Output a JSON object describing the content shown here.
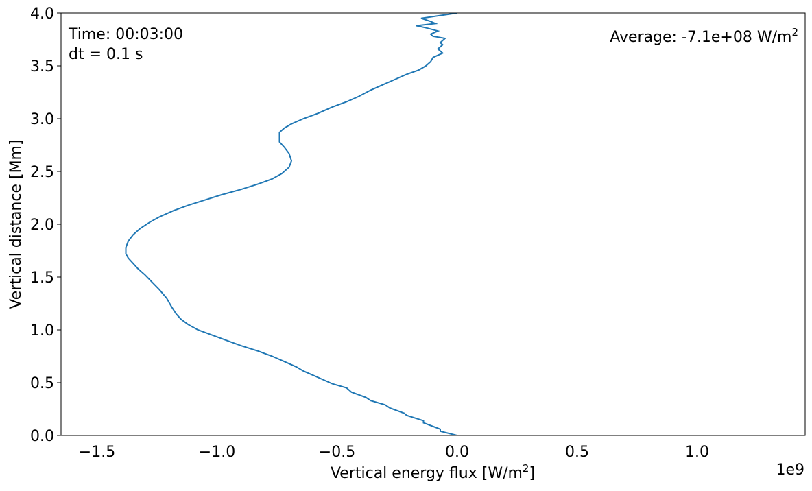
{
  "chart_data": {
    "type": "line",
    "title": "",
    "xlabel": "Vertical energy flux [W/m",
    "xlabel_sup": "2",
    "xlabel_end": "]",
    "ylabel": "Vertical distance [Mm]",
    "xlim": [
      -1650000000.0,
      1450000000.0
    ],
    "ylim": [
      0.0,
      4.0
    ],
    "x_offset_text": "1e9",
    "x_ticks": [
      -1500000000.0,
      -1000000000.0,
      -500000000.0,
      0.0,
      500000000.0,
      1000000000.0
    ],
    "x_tick_labels": [
      "−1.5",
      "−1.0",
      "−0.5",
      "0.0",
      "0.5",
      "1.0"
    ],
    "y_ticks": [
      0.0,
      0.5,
      1.0,
      1.5,
      2.0,
      2.5,
      3.0,
      3.5,
      4.0
    ],
    "y_tick_labels": [
      "0.0",
      "0.5",
      "1.0",
      "1.5",
      "2.0",
      "2.5",
      "3.0",
      "3.5",
      "4.0"
    ],
    "grid": false,
    "line_color": "#1f77b4",
    "annotations": {
      "time": "Time: 00:03:00",
      "dt": "dt = 0.1 s",
      "average": "Average: -7.1e+08 W/m",
      "average_sup": "2"
    },
    "series": [
      {
        "x": [
          0.0,
          -70000000.0,
          -70000000.0,
          -140000000.0,
          -140000000.0,
          -210000000.0,
          -220000000.0,
          -280000000.0,
          -300000000.0,
          -360000000.0,
          -380000000.0,
          -440000000.0,
          -460000000.0,
          -520000000.0,
          -560000000.0,
          -600000000.0,
          -640000000.0,
          -670000000.0,
          -720000000.0,
          -770000000.0,
          -830000000.0,
          -900000000.0,
          -960000000.0,
          -1020000000.0,
          -1080000000.0,
          -1120000000.0,
          -1150000000.0,
          -1170000000.0,
          -1190000000.0,
          -1210000000.0,
          -1240000000.0,
          -1270000000.0,
          -1300000000.0,
          -1330000000.0,
          -1350000000.0,
          -1370000000.0,
          -1380000000.0,
          -1380000000.0,
          -1370000000.0,
          -1350000000.0,
          -1320000000.0,
          -1280000000.0,
          -1240000000.0,
          -1180000000.0,
          -1120000000.0,
          -1050000000.0,
          -980000000.0,
          -900000000.0,
          -830000000.0,
          -770000000.0,
          -730000000.0,
          -700000000.0,
          -690000000.0,
          -700000000.0,
          -720000000.0,
          -740000000.0,
          -740000000.0,
          -740000000.0,
          -720000000.0,
          -690000000.0,
          -640000000.0,
          -580000000.0,
          -520000000.0,
          -460000000.0,
          -410000000.0,
          -360000000.0,
          -310000000.0,
          -260000000.0,
          -210000000.0,
          -160000000.0,
          -130000000.0,
          -110000000.0,
          -100000000.0,
          -60000000.0,
          -80000000.0,
          -60000000.0,
          -70000000.0,
          -50000000.0,
          -100000000.0,
          -110000000.0,
          -80000000.0,
          -130000000.0,
          -170000000.0,
          -90000000.0,
          -110000000.0,
          -150000000.0,
          -60000000.0,
          0.0
        ],
        "y": [
          0.0,
          0.04,
          0.06,
          0.12,
          0.14,
          0.19,
          0.21,
          0.26,
          0.29,
          0.33,
          0.36,
          0.41,
          0.45,
          0.49,
          0.53,
          0.57,
          0.61,
          0.65,
          0.7,
          0.75,
          0.8,
          0.85,
          0.9,
          0.95,
          1.0,
          1.05,
          1.1,
          1.15,
          1.22,
          1.3,
          1.38,
          1.45,
          1.52,
          1.58,
          1.63,
          1.68,
          1.72,
          1.78,
          1.84,
          1.9,
          1.96,
          2.02,
          2.07,
          2.13,
          2.18,
          2.23,
          2.28,
          2.33,
          2.38,
          2.43,
          2.48,
          2.54,
          2.6,
          2.67,
          2.73,
          2.78,
          2.82,
          2.87,
          2.91,
          2.95,
          3.0,
          3.05,
          3.11,
          3.16,
          3.21,
          3.27,
          3.32,
          3.37,
          3.42,
          3.46,
          3.5,
          3.54,
          3.58,
          3.62,
          3.66,
          3.7,
          3.72,
          3.76,
          3.78,
          3.8,
          3.83,
          3.86,
          3.88,
          3.9,
          3.92,
          3.95,
          3.98,
          4.0
        ]
      }
    ]
  }
}
